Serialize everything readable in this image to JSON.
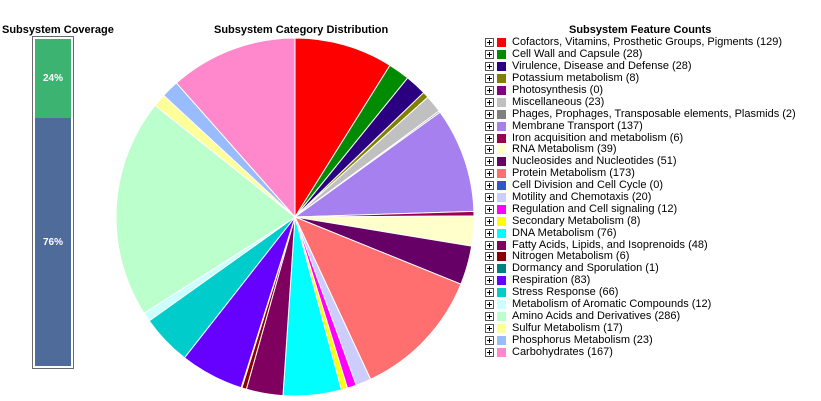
{
  "coverage": {
    "title": "Subsystem Coverage",
    "covered_label": "24%",
    "uncovered_label": "76%",
    "covered_fraction": 0.24,
    "covered_color": "#3cb371",
    "uncovered_color": "#4f6b9a"
  },
  "distribution": {
    "title": "Subsystem Category Distribution"
  },
  "feature_counts": {
    "title": "Subsystem Feature Counts"
  },
  "chart_data": {
    "type": "pie",
    "categories": [
      {
        "name": "Cofactors, Vitamins, Prosthetic Groups, Pigments",
        "count": 129,
        "color": "#ff0000",
        "label": "Cofactors, Vitamins, Prosthetic Groups, Pigments (129)"
      },
      {
        "name": "Cell Wall and Capsule",
        "count": 28,
        "color": "#008b00",
        "label": "Cell Wall and Capsule (28)"
      },
      {
        "name": "Virulence, Disease and Defense",
        "count": 28,
        "color": "#2a0080",
        "label": "Virulence, Disease and Defense (28)"
      },
      {
        "name": "Potassium metabolism",
        "count": 8,
        "color": "#808000",
        "label": "Potassium metabolism (8)"
      },
      {
        "name": "Photosynthesis",
        "count": 0,
        "color": "#800080",
        "label": "Photosynthesis (0)"
      },
      {
        "name": "Miscellaneous",
        "count": 23,
        "color": "#c0c0c0",
        "label": "Miscellaneous (23)"
      },
      {
        "name": "Phages, Prophages, Transposable elements, Plasmids",
        "count": 2,
        "color": "#808080",
        "label": "Phages, Prophages, Transposable elements, Plasmids (2)"
      },
      {
        "name": "Membrane Transport",
        "count": 137,
        "color": "#a780f0",
        "label": "Membrane Transport (137)"
      },
      {
        "name": "Iron acquisition and metabolism",
        "count": 6,
        "color": "#9b004d",
        "label": "Iron acquisition and metabolism (6)"
      },
      {
        "name": "RNA Metabolism",
        "count": 39,
        "color": "#ffffcc",
        "label": "RNA Metabolism (39)"
      },
      {
        "name": "Nucleosides and Nucleotides",
        "count": 51,
        "color": "#660066",
        "label": "Nucleosides and Nucleotides (51)"
      },
      {
        "name": "Protein Metabolism",
        "count": 173,
        "color": "#ff6f6f",
        "label": "Protein Metabolism (173)"
      },
      {
        "name": "Cell Division and Cell Cycle",
        "count": 0,
        "color": "#3355cc",
        "label": "Cell Division and Cell Cycle (0)"
      },
      {
        "name": "Motility and Chemotaxis",
        "count": 20,
        "color": "#ccccff",
        "label": "Motility and Chemotaxis (20)"
      },
      {
        "name": "Regulation and Cell signaling",
        "count": 12,
        "color": "#ff00ff",
        "label": "Regulation and Cell signaling (12)"
      },
      {
        "name": "Secondary Metabolism",
        "count": 8,
        "color": "#ffff00",
        "label": "Secondary Metabolism (8)"
      },
      {
        "name": "DNA Metabolism",
        "count": 76,
        "color": "#00ffff",
        "label": "DNA Metabolism (76)"
      },
      {
        "name": "Fatty Acids, Lipids, and Isoprenoids",
        "count": 48,
        "color": "#800060",
        "label": "Fatty Acids, Lipids, and Isoprenoids (48)"
      },
      {
        "name": "Nitrogen Metabolism",
        "count": 6,
        "color": "#8b0000",
        "label": "Nitrogen Metabolism (6)"
      },
      {
        "name": "Dormancy and Sporulation",
        "count": 1,
        "color": "#008080",
        "label": "Dormancy and Sporulation (1)"
      },
      {
        "name": "Respiration",
        "count": 83,
        "color": "#6600ff",
        "label": "Respiration (83)"
      },
      {
        "name": "Stress Response",
        "count": 66,
        "color": "#00cccc",
        "label": "Stress Response (66)"
      },
      {
        "name": "Metabolism of Aromatic Compounds",
        "count": 12,
        "color": "#ccffff",
        "label": "Metabolism of Aromatic Compounds (12)"
      },
      {
        "name": "Amino Acids and Derivatives",
        "count": 286,
        "color": "#bbffcc",
        "label": "Amino Acids and Derivatives (286)"
      },
      {
        "name": "Sulfur Metabolism",
        "count": 17,
        "color": "#ffff99",
        "label": "Sulfur Metabolism (17)"
      },
      {
        "name": "Phosphorus Metabolism",
        "count": 23,
        "color": "#99bbff",
        "label": "Phosphorus Metabolism (23)"
      },
      {
        "name": "Carbohydrates",
        "count": 167,
        "color": "#ff88cc",
        "label": "Carbohydrates (167)"
      }
    ],
    "start_angle": "top",
    "direction": "clockwise",
    "legend_placement": "right"
  }
}
